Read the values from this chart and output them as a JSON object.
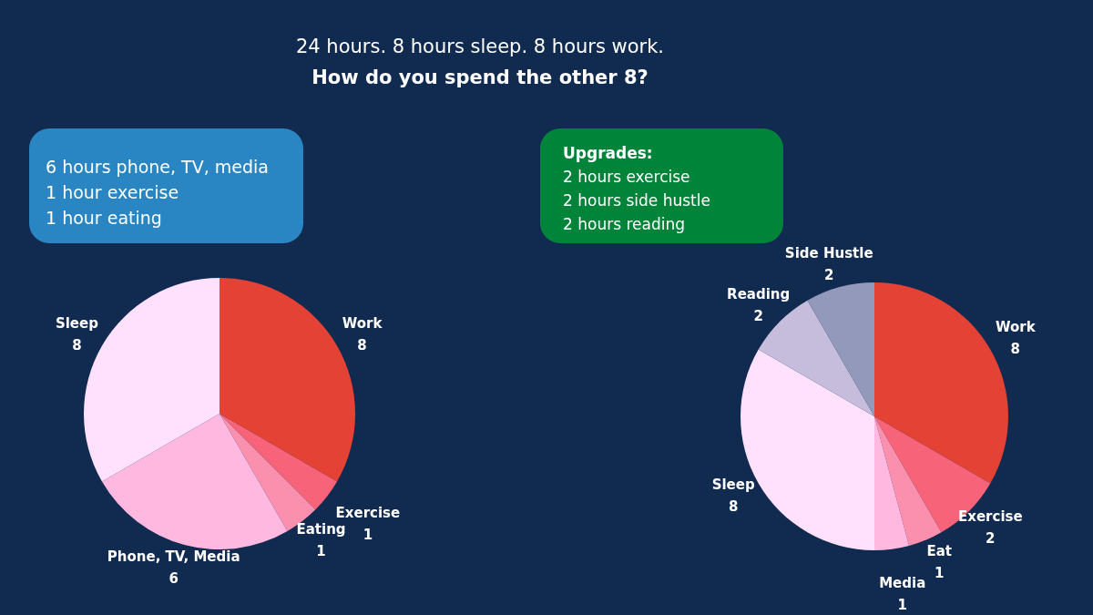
{
  "chart_data": [
    {
      "type": "pie",
      "title": "24 hours. 8 hours sleep. 8 hours work.",
      "subtitle": "How do you spend the other 8?",
      "annotations": [
        "6 hours phone, TV, media",
        "1 hour exercise",
        "1 hour eating"
      ],
      "categories": [
        "Work",
        "Exercise",
        "Eating",
        "Phone, TV, Media",
        "Sleep"
      ],
      "values": [
        8,
        1,
        1,
        6,
        8
      ],
      "colors": [
        "#e34234",
        "#f7647a",
        "#fb8fae",
        "#ffb8df",
        "#ffe0fd"
      ],
      "data_labels": true,
      "legend": false
    },
    {
      "type": "pie",
      "annotations": [
        "Upgrades:",
        "2 hours exercise",
        "2 hours side hustle",
        "2 hours reading"
      ],
      "categories": [
        "Work",
        "Exercise",
        "Eat",
        "Media",
        "Sleep",
        "Reading",
        "Side Hustle"
      ],
      "values": [
        8,
        2,
        1,
        1,
        8,
        2,
        2
      ],
      "colors": [
        "#e34234",
        "#f7647a",
        "#fb8fae",
        "#ffb8df",
        "#ffe0fd",
        "#c6bcdc",
        "#9399ba"
      ],
      "data_labels": true,
      "legend": false
    }
  ]
}
